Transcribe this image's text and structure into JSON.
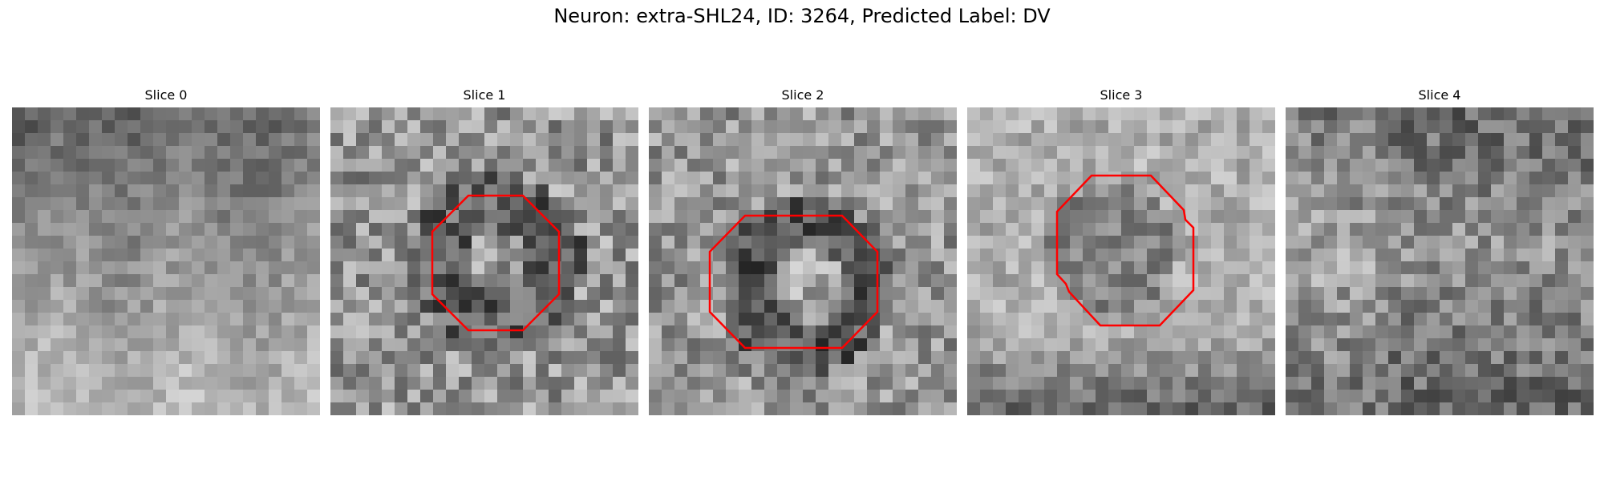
{
  "figure": {
    "title": "Neuron: extra-SHL24, ID: 3264, Predicted Label: DV"
  },
  "panels": [
    {
      "title": "Slice 0"
    },
    {
      "title": "Slice 1"
    },
    {
      "title": "Slice 2"
    },
    {
      "title": "Slice 3"
    },
    {
      "title": "Slice 4"
    }
  ],
  "colors": {
    "contour": "#ff0000",
    "background": "#ffffff"
  }
}
